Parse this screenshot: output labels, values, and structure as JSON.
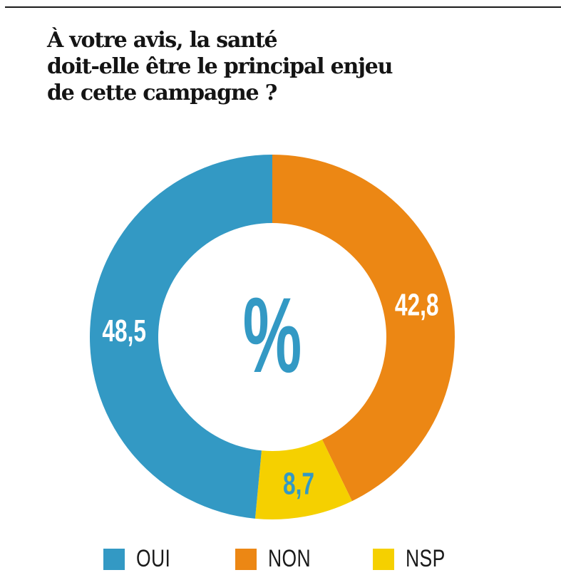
{
  "title_lines": [
    "À votre avis, la santé",
    "doit-elle être le principal enjeu",
    "de cette campagne ?"
  ],
  "center_symbol": "%",
  "colors": {
    "oui": "#3399c4",
    "non": "#ec8714",
    "nsp": "#f5d000",
    "center_symbol": "#3399c4",
    "text_dark": "#141414",
    "label_white": "#ffffff",
    "label_on_yellow": "#3399c4"
  },
  "chart_data": {
    "type": "pie",
    "variant": "donut",
    "title": "À votre avis, la santé doit-elle être le principal enjeu de cette campagne ?",
    "unit": "%",
    "start": "top",
    "direction": "clockwise",
    "slices": [
      {
        "key": "non",
        "label": "NON",
        "value": 42.8,
        "display": "42,8"
      },
      {
        "key": "nsp",
        "label": "NSP",
        "value": 8.7,
        "display": "8,7"
      },
      {
        "key": "oui",
        "label": "OUI",
        "value": 48.5,
        "display": "48,5"
      }
    ],
    "legend": [
      {
        "key": "oui",
        "label": "OUI"
      },
      {
        "key": "non",
        "label": "NON"
      },
      {
        "key": "nsp",
        "label": "NSP"
      }
    ],
    "legend_position": "bottom"
  }
}
